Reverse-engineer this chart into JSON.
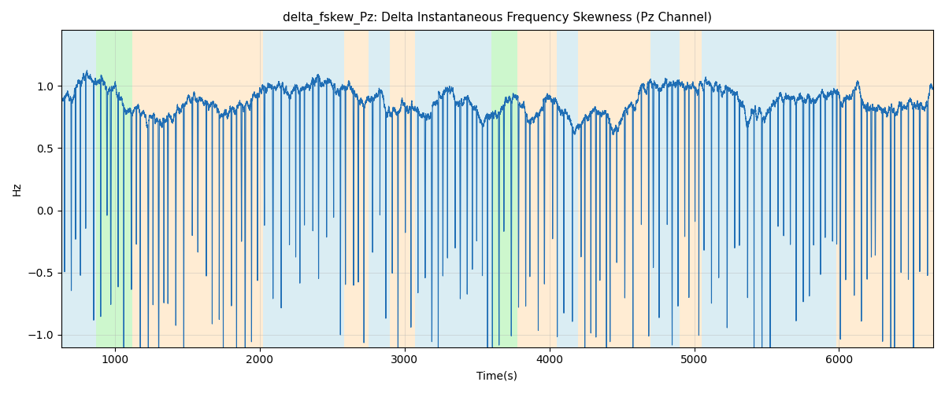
{
  "title": "delta_fskew_Pz: Delta Instantaneous Frequency Skewness (Pz Channel)",
  "xlabel": "Time(s)",
  "ylabel": "Hz",
  "line_color": "#1f6eb5",
  "line_width": 0.8,
  "ylim": [
    -1.1,
    1.45
  ],
  "xlim": [
    630,
    6650
  ],
  "figsize": [
    12,
    5
  ],
  "dpi": 100,
  "background_regions": [
    {
      "xstart": 630,
      "xend": 870,
      "color": "#add8e6",
      "alpha": 0.45
    },
    {
      "xstart": 870,
      "xend": 1120,
      "color": "#90ee90",
      "alpha": 0.45
    },
    {
      "xstart": 1120,
      "xend": 2020,
      "color": "#ffd59e",
      "alpha": 0.45
    },
    {
      "xstart": 2020,
      "xend": 2580,
      "color": "#add8e6",
      "alpha": 0.45
    },
    {
      "xstart": 2580,
      "xend": 2750,
      "color": "#ffd59e",
      "alpha": 0.45
    },
    {
      "xstart": 2750,
      "xend": 2900,
      "color": "#add8e6",
      "alpha": 0.45
    },
    {
      "xstart": 2900,
      "xend": 3070,
      "color": "#ffd59e",
      "alpha": 0.45
    },
    {
      "xstart": 3070,
      "xend": 3600,
      "color": "#add8e6",
      "alpha": 0.45
    },
    {
      "xstart": 3600,
      "xend": 3780,
      "color": "#90ee90",
      "alpha": 0.45
    },
    {
      "xstart": 3780,
      "xend": 4050,
      "color": "#ffd59e",
      "alpha": 0.45
    },
    {
      "xstart": 4050,
      "xend": 4200,
      "color": "#add8e6",
      "alpha": 0.45
    },
    {
      "xstart": 4200,
      "xend": 4700,
      "color": "#ffd59e",
      "alpha": 0.45
    },
    {
      "xstart": 4700,
      "xend": 4900,
      "color": "#add8e6",
      "alpha": 0.45
    },
    {
      "xstart": 4900,
      "xend": 5050,
      "color": "#ffd59e",
      "alpha": 0.45
    },
    {
      "xstart": 5050,
      "xend": 5800,
      "color": "#add8e6",
      "alpha": 0.45
    },
    {
      "xstart": 5800,
      "xend": 5980,
      "color": "#add8e6",
      "alpha": 0.45
    },
    {
      "xstart": 5980,
      "xend": 6650,
      "color": "#ffd59e",
      "alpha": 0.45
    }
  ],
  "seed": 42,
  "grid_color": "#b0b0b0",
  "grid_alpha": 0.5,
  "grid_linewidth": 0.5
}
